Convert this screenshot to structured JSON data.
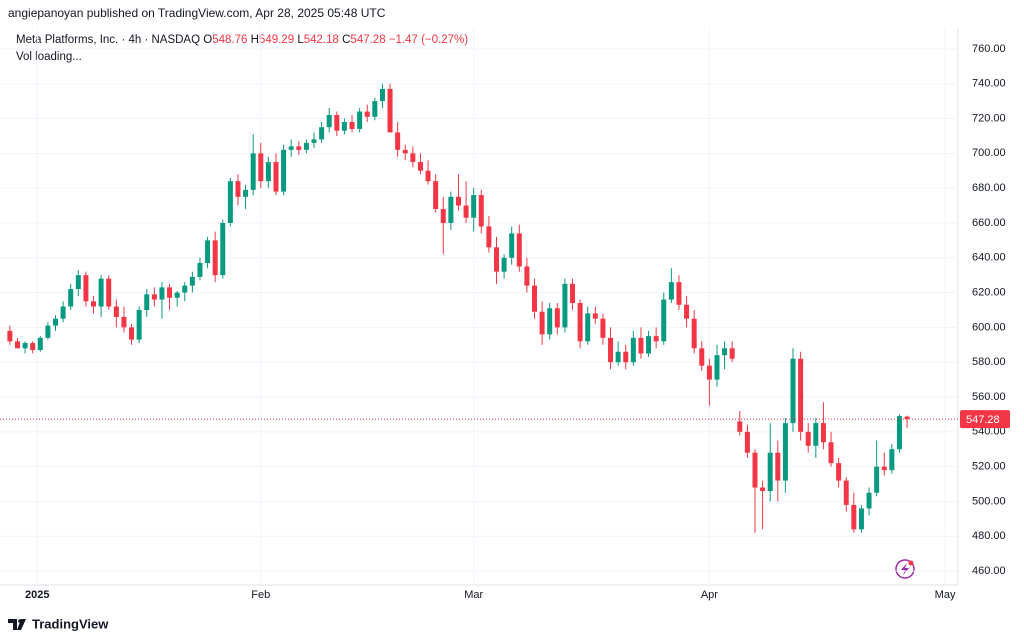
{
  "header": {
    "published": "angiepanoyan published on TradingView.com, Apr 28, 2025 05:48 UTC"
  },
  "legend": {
    "symbol": "Meta Platforms, Inc. · 4h · NASDAQ",
    "open_label": "O",
    "open": 548.76,
    "high_label": "H",
    "high": 549.29,
    "low_label": "L",
    "low": 542.18,
    "close_label": "C",
    "close": 547.28,
    "change": "−1.47 (−0.27%)",
    "volume": "Vol loading..."
  },
  "footer": {
    "brand": "TradingView"
  },
  "chart_data": {
    "type": "candlestick",
    "up_color": "#089981",
    "down_color": "#f23645",
    "grid": true,
    "last_price": 547.28,
    "ylim": [
      452,
      772
    ],
    "yticks": [
      {
        "value": 460,
        "label": "460.00"
      },
      {
        "value": 480,
        "label": "480.00"
      },
      {
        "value": 500,
        "label": "500.00"
      },
      {
        "value": 520,
        "label": "520.00"
      },
      {
        "value": 540,
        "label": "540.00"
      },
      {
        "value": 560,
        "label": "560.00"
      },
      {
        "value": 580,
        "label": "580.00"
      },
      {
        "value": 600,
        "label": "600.00"
      },
      {
        "value": 620,
        "label": "620.00"
      },
      {
        "value": 640,
        "label": "640.00"
      },
      {
        "value": 660,
        "label": "660.00"
      },
      {
        "value": 680,
        "label": "680.00"
      },
      {
        "value": 700,
        "label": "700.00"
      },
      {
        "value": 720,
        "label": "720.00"
      },
      {
        "value": 740,
        "label": "740.00"
      },
      {
        "value": 760,
        "label": "760.00"
      }
    ],
    "xlim": [
      -1.3,
      124.7
    ],
    "xticks": [
      {
        "value": 3.6,
        "label": "2025"
      },
      {
        "value": 33,
        "label": "Feb"
      },
      {
        "value": 61,
        "label": "Mar"
      },
      {
        "value": 92,
        "label": "Apr"
      },
      {
        "value": 123,
        "label": "May"
      }
    ],
    "candles": [
      [
        598,
        601,
        590,
        592
      ],
      [
        592,
        594,
        588,
        588
      ],
      [
        588,
        592,
        585,
        591
      ],
      [
        591,
        592,
        585,
        587
      ],
      [
        587,
        595,
        586,
        594
      ],
      [
        594,
        603,
        593,
        601
      ],
      [
        601,
        607,
        598,
        605
      ],
      [
        605,
        615,
        603,
        612
      ],
      [
        612,
        625,
        610,
        622
      ],
      [
        622,
        633,
        618,
        630
      ],
      [
        630,
        632,
        612,
        615
      ],
      [
        615,
        618,
        608,
        612
      ],
      [
        612,
        630,
        606,
        628
      ],
      [
        628,
        630,
        610,
        612
      ],
      [
        612,
        616,
        600,
        606
      ],
      [
        606,
        612,
        597,
        600
      ],
      [
        600,
        602,
        590,
        593
      ],
      [
        593,
        612,
        591,
        610
      ],
      [
        610,
        622,
        606,
        619
      ],
      [
        619,
        623,
        612,
        616
      ],
      [
        616,
        626,
        605,
        623
      ],
      [
        623,
        625,
        610,
        617
      ],
      [
        617,
        621,
        612,
        620
      ],
      [
        620,
        626,
        615,
        624
      ],
      [
        624,
        632,
        620,
        629
      ],
      [
        629,
        640,
        627,
        637
      ],
      [
        637,
        652,
        634,
        650
      ],
      [
        650,
        655,
        626,
        630
      ],
      [
        630,
        662,
        628,
        660
      ],
      [
        660,
        686,
        658,
        684
      ],
      [
        684,
        688,
        670,
        675
      ],
      [
        675,
        682,
        668,
        679
      ],
      [
        679,
        711,
        676,
        700
      ],
      [
        700,
        706,
        680,
        684
      ],
      [
        684,
        698,
        680,
        695
      ],
      [
        695,
        700,
        676,
        678
      ],
      [
        678,
        705,
        676,
        702
      ],
      [
        702,
        708,
        698,
        704
      ],
      [
        704,
        707,
        699,
        702
      ],
      [
        702,
        708,
        700,
        706
      ],
      [
        706,
        712,
        703,
        708
      ],
      [
        708,
        718,
        706,
        715
      ],
      [
        715,
        726,
        712,
        722
      ],
      [
        722,
        724,
        710,
        713
      ],
      [
        713,
        720,
        711,
        718
      ],
      [
        718,
        722,
        712,
        714
      ],
      [
        714,
        726,
        712,
        724
      ],
      [
        724,
        728,
        718,
        721
      ],
      [
        721,
        732,
        719,
        730
      ],
      [
        730,
        740,
        726,
        737
      ],
      [
        737,
        740,
        712,
        712
      ],
      [
        712,
        718,
        698,
        702
      ],
      [
        702,
        705,
        696,
        700
      ],
      [
        700,
        704,
        692,
        695
      ],
      [
        695,
        700,
        688,
        690
      ],
      [
        690,
        696,
        682,
        684
      ],
      [
        684,
        688,
        666,
        668
      ],
      [
        668,
        675,
        642,
        660
      ],
      [
        660,
        678,
        656,
        675
      ],
      [
        675,
        688,
        667,
        670
      ],
      [
        670,
        684,
        660,
        663
      ],
      [
        663,
        680,
        655,
        676
      ],
      [
        676,
        679,
        654,
        658
      ],
      [
        658,
        664,
        643,
        646
      ],
      [
        646,
        652,
        625,
        632
      ],
      [
        632,
        642,
        628,
        640
      ],
      [
        640,
        658,
        636,
        654
      ],
      [
        654,
        659,
        632,
        635
      ],
      [
        635,
        640,
        620,
        624
      ],
      [
        624,
        628,
        605,
        609
      ],
      [
        609,
        615,
        590,
        596
      ],
      [
        596,
        614,
        593,
        611
      ],
      [
        611,
        614,
        596,
        600
      ],
      [
        600,
        628,
        597,
        625
      ],
      [
        625,
        628,
        610,
        614
      ],
      [
        614,
        616,
        588,
        592
      ],
      [
        592,
        612,
        590,
        608
      ],
      [
        608,
        612,
        602,
        605
      ],
      [
        605,
        608,
        590,
        594
      ],
      [
        594,
        600,
        576,
        580
      ],
      [
        580,
        592,
        578,
        586
      ],
      [
        586,
        590,
        576,
        580
      ],
      [
        580,
        598,
        578,
        594
      ],
      [
        594,
        600,
        582,
        585
      ],
      [
        585,
        598,
        583,
        595
      ],
      [
        595,
        600,
        588,
        592
      ],
      [
        592,
        620,
        590,
        616
      ],
      [
        616,
        634,
        614,
        626
      ],
      [
        626,
        630,
        610,
        613
      ],
      [
        613,
        618,
        600,
        605
      ],
      [
        605,
        610,
        585,
        588
      ],
      [
        588,
        592,
        575,
        578
      ],
      [
        578,
        582,
        555,
        570
      ],
      [
        570,
        590,
        566,
        584
      ],
      [
        584,
        592,
        576,
        588
      ],
      [
        588,
        592,
        580,
        582
      ],
      [
        546,
        552,
        538,
        540
      ],
      [
        540,
        544,
        525,
        528
      ],
      [
        528,
        530,
        482,
        508
      ],
      [
        508,
        512,
        484,
        506
      ],
      [
        506,
        545,
        500,
        528
      ],
      [
        528,
        535,
        500,
        512
      ],
      [
        512,
        548,
        505,
        545
      ],
      [
        545,
        588,
        540,
        582
      ],
      [
        582,
        586,
        535,
        540
      ],
      [
        540,
        545,
        528,
        532
      ],
      [
        532,
        548,
        525,
        545
      ],
      [
        545,
        557,
        530,
        534
      ],
      [
        534,
        540,
        520,
        522
      ],
      [
        522,
        525,
        508,
        512
      ],
      [
        512,
        514,
        494,
        498
      ],
      [
        498,
        505,
        482,
        484
      ],
      [
        484,
        498,
        482,
        496
      ],
      [
        496,
        508,
        492,
        505
      ],
      [
        505,
        535,
        503,
        520
      ],
      [
        520,
        528,
        515,
        518
      ],
      [
        518,
        533,
        516,
        530
      ],
      [
        530,
        550,
        528,
        549
      ],
      [
        548.76,
        549.29,
        542.18,
        547.28
      ]
    ]
  }
}
